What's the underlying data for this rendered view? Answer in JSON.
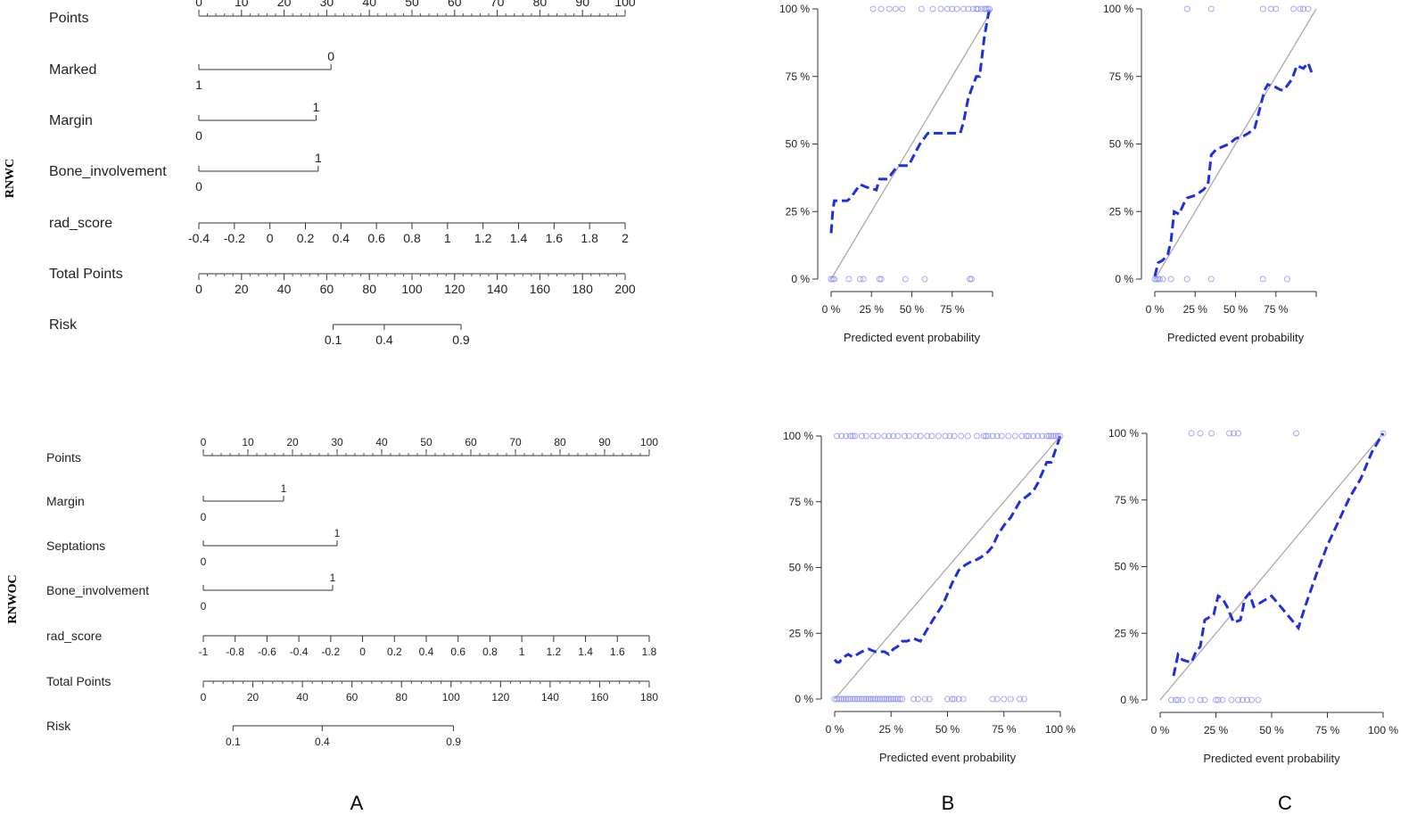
{
  "panel_labels": [
    "A",
    "B",
    "C"
  ],
  "row_labels": [
    "RNWC",
    "RNWOC"
  ],
  "chart_data": [
    {
      "type": "nomogram",
      "id": "nomo-rnwc",
      "rows": [
        {
          "label": "Points",
          "kind": "scale",
          "min": 0,
          "max": 100,
          "ticks": [
            "0",
            "10",
            "20",
            "30",
            "40",
            "50",
            "60",
            "70",
            "80",
            "90",
            "100"
          ],
          "minor_step": 2,
          "tick_side": "above"
        },
        {
          "label": "Marked",
          "kind": "binary",
          "start_label": "1",
          "end_label": "0",
          "end_points": 31
        },
        {
          "label": "Margin",
          "kind": "binary",
          "start_label": "0",
          "end_label": "1",
          "end_points": 27.5
        },
        {
          "label": "Bone_involvement",
          "kind": "binary",
          "start_label": "0",
          "end_label": "1",
          "end_points": 28
        },
        {
          "label": "rad_score",
          "kind": "scale",
          "min": -0.4,
          "max": 2,
          "ticks": [
            "-0.4",
            "-0.2",
            "0",
            "0.2",
            "0.4",
            "0.6",
            "0.8",
            "1",
            "1.2",
            "1.4",
            "1.6",
            "1.8",
            "2"
          ],
          "tick_side": "below"
        },
        {
          "label": "Total Points",
          "kind": "scale",
          "min": 0,
          "max": 200,
          "ticks": [
            "0",
            "20",
            "40",
            "60",
            "80",
            "100",
            "120",
            "140",
            "160",
            "180",
            "200"
          ],
          "minor_step": 4,
          "tick_side": "below"
        },
        {
          "label": "Risk",
          "kind": "risk",
          "ticks": [
            {
              "label": "0.1",
              "points": 63
            },
            {
              "label": "0.4",
              "points": 87
            },
            {
              "label": "0.9",
              "points": 123
            }
          ]
        }
      ]
    },
    {
      "type": "nomogram",
      "id": "nomo-rnwoc",
      "rows": [
        {
          "label": "Points",
          "kind": "scale",
          "min": 0,
          "max": 100,
          "ticks": [
            "0",
            "10",
            "20",
            "30",
            "40",
            "50",
            "60",
            "70",
            "80",
            "90",
            "100"
          ],
          "minor_step": 2,
          "tick_side": "above"
        },
        {
          "label": "Margin",
          "kind": "binary",
          "start_label": "0",
          "end_label": "1",
          "end_points": 18
        },
        {
          "label": "Septations",
          "kind": "binary",
          "start_label": "0",
          "end_label": "1",
          "end_points": 30
        },
        {
          "label": "Bone_involvement",
          "kind": "binary",
          "start_label": "0",
          "end_label": "1",
          "end_points": 29
        },
        {
          "label": "rad_score",
          "kind": "scale",
          "min": -1,
          "max": 1.8,
          "ticks": [
            "-1",
            "-0.8",
            "-0.6",
            "-0.4",
            "-0.2",
            "0",
            "0.2",
            "0.4",
            "0.6",
            "0.8",
            "1",
            "1.2",
            "1.4",
            "1.6",
            "1.8"
          ],
          "tick_side": "below"
        },
        {
          "label": "Total Points",
          "kind": "scale",
          "min": 0,
          "max": 180,
          "ticks": [
            "0",
            "20",
            "40",
            "60",
            "80",
            "100",
            "120",
            "140",
            "160",
            "180"
          ],
          "minor_step": 4,
          "tick_side": "below"
        },
        {
          "label": "Risk",
          "kind": "risk",
          "ticks": [
            {
              "label": "0.1",
              "points": 12
            },
            {
              "label": "0.4",
              "points": 48
            },
            {
              "label": "0.9",
              "points": 101
            }
          ]
        }
      ]
    },
    {
      "type": "line",
      "id": "cal-b1",
      "xlabel": "Predicted event probability",
      "x_ticks": [
        "0 %",
        "25 %",
        "50 %",
        "75 %"
      ],
      "y_ticks": [
        "0 %",
        "25 %",
        "50 %",
        "75 %",
        "100 %"
      ],
      "xlim": [
        0,
        100
      ],
      "ylim": [
        0,
        100
      ],
      "series": [
        {
          "name": "ideal",
          "style": "gray-solid",
          "x": [
            0,
            100
          ],
          "y": [
            0,
            100
          ]
        },
        {
          "name": "calibration",
          "style": "blue-dashed",
          "x": [
            0,
            1,
            2,
            10,
            12,
            18,
            22,
            28,
            30,
            35,
            40,
            42,
            48,
            55,
            60,
            65,
            70,
            75,
            78,
            80,
            82,
            85,
            88,
            90,
            92,
            95,
            98
          ],
          "y": [
            17,
            25,
            29,
            29,
            30,
            35,
            34,
            33,
            37,
            37,
            41,
            42,
            42,
            50,
            54,
            54,
            54,
            54,
            54,
            54,
            58,
            67,
            72,
            75,
            75,
            90,
            100
          ]
        },
        {
          "name": "events",
          "style": "rug-top",
          "x": [
            26,
            31,
            36,
            40,
            44,
            56,
            63,
            68,
            72,
            75,
            78,
            82,
            85,
            88,
            90,
            91,
            93,
            95,
            96,
            97,
            98
          ]
        },
        {
          "name": "non-events",
          "style": "rug-bottom",
          "x": [
            0,
            1,
            2,
            11,
            18,
            20,
            30,
            31,
            46,
            58,
            86,
            87
          ]
        }
      ]
    },
    {
      "type": "line",
      "id": "cal-c1",
      "xlabel": "Predicted event probability",
      "x_ticks": [
        "0 %",
        "25 %",
        "50 %",
        "75 %"
      ],
      "y_ticks": [
        "0 %",
        "25 %",
        "50 %",
        "75 %",
        "100 %"
      ],
      "xlim": [
        0,
        100
      ],
      "ylim": [
        0,
        100
      ],
      "series": [
        {
          "name": "ideal",
          "style": "gray-solid",
          "x": [
            0,
            100
          ],
          "y": [
            0,
            100
          ]
        },
        {
          "name": "calibration",
          "style": "blue-dashed",
          "x": [
            0,
            2,
            5,
            8,
            10,
            12,
            15,
            18,
            20,
            25,
            30,
            33,
            35,
            38,
            42,
            46,
            50,
            55,
            58,
            62,
            65,
            68,
            70,
            75,
            78,
            80,
            85,
            88,
            92,
            95,
            98
          ],
          "y": [
            1,
            6,
            7,
            9,
            14,
            25,
            24,
            28,
            30,
            31,
            33,
            35,
            46,
            48,
            49,
            50,
            52,
            53,
            54,
            56,
            63,
            70,
            72,
            71,
            70,
            70,
            74,
            79,
            78,
            80,
            75
          ]
        },
        {
          "name": "events",
          "style": "rug-top",
          "x": [
            20,
            35,
            67,
            72,
            75,
            86,
            90,
            92,
            95
          ]
        },
        {
          "name": "non-events",
          "style": "rug-bottom",
          "x": [
            0,
            1,
            2,
            3,
            5,
            10,
            20,
            35,
            67,
            82
          ]
        }
      ]
    },
    {
      "type": "line",
      "id": "cal-b2",
      "xlabel": "Predicted event probability",
      "x_ticks": [
        "0 %",
        "25 %",
        "50 %",
        "75 %",
        "100 %"
      ],
      "y_ticks": [
        "0 %",
        "25 %",
        "50 %",
        "75 %",
        "100 %"
      ],
      "xlim": [
        0,
        100
      ],
      "ylim": [
        0,
        100
      ],
      "series": [
        {
          "name": "ideal",
          "style": "gray-solid",
          "x": [
            0,
            100
          ],
          "y": [
            0,
            100
          ]
        },
        {
          "name": "calibration",
          "style": "blue-dashed",
          "x": [
            0,
            1,
            2,
            4,
            6,
            8,
            10,
            12,
            15,
            18,
            20,
            22,
            24,
            26,
            28,
            30,
            32,
            35,
            38,
            40,
            42,
            45,
            48,
            50,
            52,
            55,
            58,
            60,
            63,
            65,
            68,
            70,
            72,
            75,
            78,
            80,
            82,
            85,
            88,
            90,
            92,
            94,
            96,
            98,
            100
          ],
          "y": [
            15,
            14,
            14,
            16,
            17,
            16,
            17,
            18,
            19,
            18,
            18,
            18,
            17,
            19,
            20,
            22,
            22,
            23,
            22,
            25,
            28,
            32,
            36,
            40,
            44,
            49,
            51,
            52,
            53,
            54,
            56,
            58,
            62,
            66,
            69,
            72,
            75,
            77,
            79,
            82,
            86,
            90,
            90,
            95,
            100
          ]
        },
        {
          "name": "events",
          "style": "rug-top",
          "x": [
            1,
            3,
            5,
            7,
            8,
            9,
            12,
            14,
            17,
            19,
            22,
            24,
            26,
            28,
            31,
            33,
            36,
            38,
            41,
            43,
            46,
            49,
            51,
            53,
            56,
            59,
            63,
            66,
            67,
            68,
            70,
            72,
            74,
            77,
            80,
            83,
            85,
            86,
            88,
            90,
            92,
            94,
            95,
            96,
            97,
            98,
            99,
            100
          ]
        },
        {
          "name": "non-events",
          "style": "rug-bottom",
          "x": [
            0,
            1,
            2,
            3,
            4,
            5,
            6,
            7,
            8,
            9,
            10,
            11,
            12,
            13,
            14,
            15,
            16,
            17,
            18,
            19,
            20,
            21,
            22,
            23,
            24,
            25,
            26,
            27,
            28,
            29,
            30,
            35,
            37,
            40,
            42,
            50,
            52,
            53,
            55,
            57,
            70,
            72,
            75,
            78,
            82,
            84
          ]
        }
      ]
    },
    {
      "type": "line",
      "id": "cal-c2",
      "xlabel": "Predicted event probability",
      "x_ticks": [
        "0 %",
        "25 %",
        "50 %",
        "75 %",
        "100 %"
      ],
      "y_ticks": [
        "0 %",
        "25 %",
        "50 %",
        "75 %",
        "100 %"
      ],
      "xlim": [
        0,
        100
      ],
      "ylim": [
        0,
        100
      ],
      "series": [
        {
          "name": "ideal",
          "style": "gray-solid",
          "x": [
            0,
            100
          ],
          "y": [
            0,
            100
          ]
        },
        {
          "name": "calibration",
          "style": "blue-dashed",
          "x": [
            6,
            8,
            10,
            14,
            16,
            18,
            20,
            24,
            26,
            28,
            30,
            33,
            36,
            38,
            40,
            42,
            46,
            50,
            55,
            60,
            62,
            65,
            70,
            75,
            80,
            85,
            90,
            95,
            100
          ],
          "y": [
            9,
            17,
            15,
            14,
            18,
            20,
            30,
            32,
            39,
            38,
            35,
            29,
            30,
            38,
            40,
            35,
            37,
            39,
            34,
            29,
            27,
            35,
            47,
            58,
            67,
            76,
            83,
            93,
            100
          ]
        },
        {
          "name": "events",
          "style": "rug-top",
          "x": [
            14,
            18,
            23,
            31,
            33,
            35,
            61,
            100
          ]
        },
        {
          "name": "non-events",
          "style": "rug-bottom",
          "x": [
            5,
            7,
            8,
            10,
            14,
            18,
            20,
            25,
            26,
            28,
            32,
            35,
            37,
            39,
            41,
            44
          ]
        }
      ]
    }
  ]
}
